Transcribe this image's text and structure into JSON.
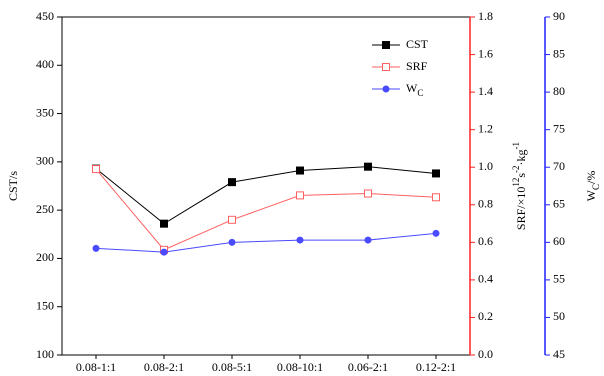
{
  "chart_data": {
    "type": "line",
    "categories": [
      "0.08-1:1",
      "0.08-2:1",
      "0.08-5:1",
      "0.08-10:1",
      "0.06-2:1",
      "0.12-2:1"
    ],
    "y_label": "CST/s",
    "y2_label": {
      "main": "SRF/×10",
      "sup1": "12",
      "mid": "s",
      "sup2": "-2",
      "rest": "·kg",
      "sup3": "-1"
    },
    "y3_label": {
      "main": "W",
      "sub": "C",
      "rest": "/%"
    },
    "ylim": [
      100,
      450
    ],
    "yticks": [
      100,
      150,
      200,
      250,
      300,
      350,
      400,
      450
    ],
    "y_color": "#000000",
    "y2lim": [
      0,
      1.8
    ],
    "y2ticks": [
      {
        "value": 0,
        "label": "0.0"
      },
      0.2,
      0.4,
      0.6,
      0.8,
      {
        "value": 1,
        "label": "1.0"
      },
      1.2,
      1.4,
      1.6,
      1.8
    ],
    "y2_color": "#ff2020",
    "y3lim": [
      45,
      90
    ],
    "y3ticks": [
      45,
      50,
      55,
      60,
      65,
      70,
      75,
      80,
      85,
      90
    ],
    "y3_color": "#2020ff",
    "legend": "upper right",
    "series": [
      {
        "name": "CST",
        "color": "#000000",
        "marker": "filled-square",
        "axis": "y",
        "values": [
          293,
          236,
          279,
          291,
          295,
          288
        ]
      },
      {
        "name": "SRF",
        "color": "#ff6060",
        "marker": "open-square",
        "axis": "y2",
        "values": [
          0.99,
          0.56,
          0.72,
          0.85,
          0.86,
          0.84
        ]
      },
      {
        "name": "W",
        "name_sub": "C",
        "color": "#4a4aff",
        "marker": "filled-circle",
        "axis": "y3",
        "values": [
          59.2,
          58.7,
          60,
          60.3,
          60.3,
          61.2
        ]
      }
    ]
  }
}
